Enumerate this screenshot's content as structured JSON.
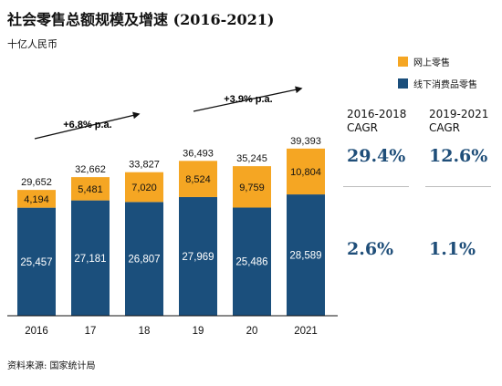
{
  "title": "社会零售总额规模及增速 (2016-2021)",
  "unit": "十亿人民币",
  "source": "资料来源: 国家统计局",
  "colors": {
    "online": "#F5A623",
    "offline": "#1B4F7C"
  },
  "legend": {
    "online": "网上零售",
    "offline": "线下消费品零售"
  },
  "growth": {
    "first": "+6.8% p.a.",
    "second": "+3.9% p.a."
  },
  "cagr": {
    "head1": "2016-2018",
    "head2": "2019-2021",
    "sub": "CAGR",
    "online_1": "29.4%",
    "online_2": "12.6%",
    "offline_1": "2.6%",
    "offline_2": "1.1%"
  },
  "chart_data": {
    "type": "bar",
    "stacked": true,
    "categories": [
      "2016",
      "17",
      "18",
      "19",
      "20",
      "2021"
    ],
    "series": [
      {
        "name": "线下消费品零售",
        "values": [
          25457,
          27181,
          26807,
          27969,
          25486,
          28589
        ]
      },
      {
        "name": "网上零售",
        "values": [
          4194,
          5481,
          7020,
          8524,
          9759,
          10804
        ]
      }
    ],
    "totals": [
      29652,
      32662,
      33827,
      36493,
      35245,
      39393
    ],
    "value_labels_offline": [
      "25,457",
      "27,181",
      "26,807",
      "27,969",
      "25,486",
      "28,589"
    ],
    "value_labels_online": [
      "4,194",
      "5,481",
      "7,020",
      "8,524",
      "9,759",
      "10,804"
    ],
    "total_labels": [
      "29,652",
      "32,662",
      "33,827",
      "36,493",
      "35,245",
      "39,393"
    ],
    "legend_position": "top-right",
    "grid": false
  }
}
